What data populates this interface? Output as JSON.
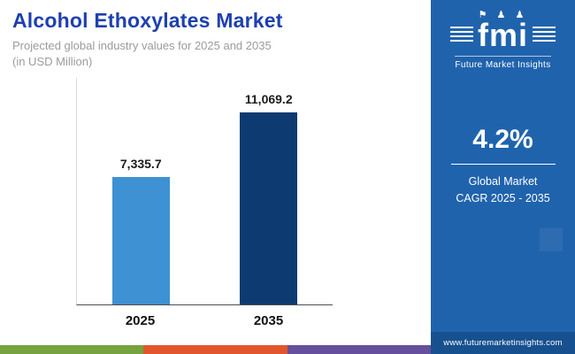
{
  "header": {
    "title": "Alcohol Ethoxylates Market",
    "subtitle_line1": "Projected global industry values for 2025 and 2035",
    "subtitle_line2": "(in USD Million)"
  },
  "chart_data": {
    "type": "bar",
    "categories": [
      "2025",
      "2035"
    ],
    "values": [
      7335.7,
      11069.2
    ],
    "value_labels": [
      "7,335.7",
      "11,069.2"
    ],
    "title": "Alcohol Ethoxylates Market",
    "xlabel": "",
    "ylabel": "USD Million",
    "ylim": [
      0,
      12000
    ],
    "grid": false,
    "legend": "none",
    "bar_colors": [
      "#3e92d3",
      "#0d3a70"
    ]
  },
  "sidebar": {
    "logo_icons": "⚑ ♟ ♟",
    "logo_text": "fmi",
    "logo_subtext": "Future Market Insights",
    "cagr_value": "4.2%",
    "cagr_label_line1": "Global Market",
    "cagr_label_line2": "CAGR 2025 - 2035",
    "website": "www.futuremarketinsights.com"
  },
  "colors": {
    "title": "#1e40af",
    "sidebar_bg": "#2063ad",
    "sidebar_strip": "#17508f",
    "footer_stripes": [
      "#76a240",
      "#e1562c",
      "#664f9c"
    ]
  }
}
